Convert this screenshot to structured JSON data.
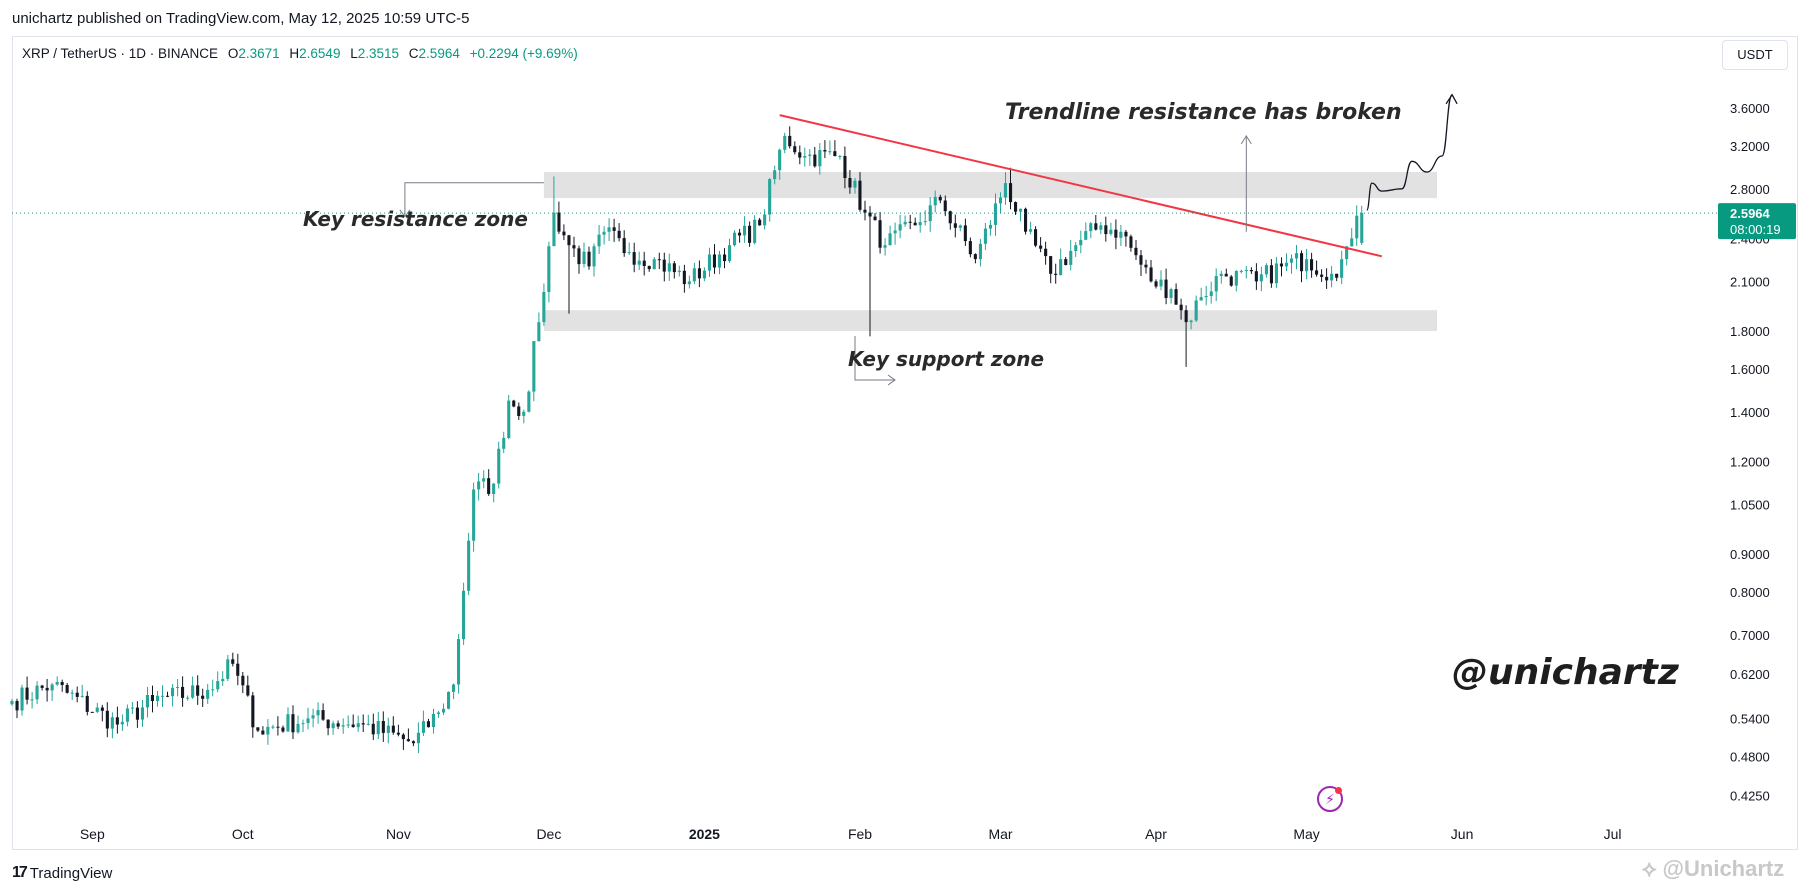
{
  "header": {
    "published": "unichartz published on TradingView.com, May 12, 2025 10:59 UTC-5"
  },
  "legend": {
    "symbol": "XRP / TetherUS · 1D · BINANCE",
    "o_label": "O",
    "o": "2.3671",
    "h_label": "H",
    "h": "2.6549",
    "l_label": "L",
    "l": "2.3515",
    "c_label": "C",
    "c": "2.5964",
    "change": "+0.2294 (+9.69%)"
  },
  "currency_button": "USDT",
  "last_price": {
    "value": "2.5964",
    "countdown": "08:00:19"
  },
  "annotations": {
    "trendline_text": "Trendline resistance has broken",
    "resistance_text": "Key resistance zone",
    "support_text": "Key support zone",
    "watermark_handle": "@unichartz"
  },
  "footer": {
    "brand": "TradingView",
    "brand_glyph": "17",
    "watermark": "@Unichartz"
  },
  "colors": {
    "up": "#26a69a",
    "down": "#131722",
    "trendline": "#f23645",
    "zone": "#e2e2e2",
    "price_tag": "#089981"
  },
  "chart_data": {
    "type": "candlestick",
    "symbol": "XRP / TetherUS",
    "interval": "1D",
    "exchange": "BINANCE",
    "y_scale": "log",
    "y_ticks": [
      3.6,
      3.2,
      2.8,
      2.4,
      2.1,
      1.8,
      1.6,
      1.4,
      1.2,
      1.05,
      0.9,
      0.8,
      0.7,
      0.62,
      0.54,
      0.48,
      0.425
    ],
    "y_tick_labels": [
      "3.6000",
      "3.2000",
      "2.8000",
      "2.4000",
      "2.1000",
      "1.8000",
      "1.6000",
      "1.4000",
      "1.2000",
      "1.0500",
      "0.9000",
      "0.8000",
      "0.7000",
      "0.6200",
      "0.5400",
      "0.4800",
      "0.4250"
    ],
    "x_ticks": [
      {
        "label": "Sep",
        "date": "2024-09-01",
        "bold": false
      },
      {
        "label": "Oct",
        "date": "2024-10-01",
        "bold": false
      },
      {
        "label": "Nov",
        "date": "2024-11-01",
        "bold": false
      },
      {
        "label": "Dec",
        "date": "2024-12-01",
        "bold": false
      },
      {
        "label": "2025",
        "date": "2025-01-01",
        "bold": true
      },
      {
        "label": "Feb",
        "date": "2025-02-01",
        "bold": false
      },
      {
        "label": "Mar",
        "date": "2025-03-01",
        "bold": false
      },
      {
        "label": "Apr",
        "date": "2025-04-01",
        "bold": false
      },
      {
        "label": "May",
        "date": "2025-05-01",
        "bold": false
      },
      {
        "label": "Jun",
        "date": "2025-06-01",
        "bold": false
      },
      {
        "label": "Jul",
        "date": "2025-07-01",
        "bold": false
      }
    ],
    "x_range": [
      "2024-08-16",
      "2025-07-22"
    ],
    "y_range": [
      0.4,
      4.05
    ],
    "anchors": [
      [
        "2024-08-16",
        0.57
      ],
      [
        "2024-08-24",
        0.6
      ],
      [
        "2024-09-06",
        0.53
      ],
      [
        "2024-09-13",
        0.57
      ],
      [
        "2024-09-24",
        0.59
      ],
      [
        "2024-09-29",
        0.64
      ],
      [
        "2024-10-04",
        0.52
      ],
      [
        "2024-10-14",
        0.54
      ],
      [
        "2024-10-25",
        0.53
      ],
      [
        "2024-11-04",
        0.5
      ],
      [
        "2024-11-09",
        0.55
      ],
      [
        "2024-11-12",
        0.6
      ],
      [
        "2024-11-16",
        1.1
      ],
      [
        "2024-11-20",
        1.12
      ],
      [
        "2024-11-23",
        1.45
      ],
      [
        "2024-11-26",
        1.4
      ],
      [
        "2024-11-29",
        1.85
      ],
      [
        "2024-12-02",
        2.6
      ],
      [
        "2024-12-05",
        2.35
      ],
      [
        "2024-12-09",
        2.2
      ],
      [
        "2024-12-12",
        2.45
      ],
      [
        "2024-12-17",
        2.3
      ],
      [
        "2024-12-22",
        2.25
      ],
      [
        "2024-12-29",
        2.1
      ],
      [
        "2025-01-06",
        2.35
      ],
      [
        "2025-01-12",
        2.5
      ],
      [
        "2025-01-17",
        3.3
      ],
      [
        "2025-01-21",
        3.1
      ],
      [
        "2025-01-28",
        3.1
      ],
      [
        "2025-02-02",
        2.6
      ],
      [
        "2025-02-06",
        2.35
      ],
      [
        "2025-02-12",
        2.5
      ],
      [
        "2025-02-17",
        2.7
      ],
      [
        "2025-02-24",
        2.25
      ],
      [
        "2025-03-02",
        2.85
      ],
      [
        "2025-03-06",
        2.45
      ],
      [
        "2025-03-11",
        2.15
      ],
      [
        "2025-03-16",
        2.35
      ],
      [
        "2025-03-21",
        2.5
      ],
      [
        "2025-03-25",
        2.45
      ],
      [
        "2025-03-31",
        2.1
      ],
      [
        "2025-04-04",
        2.05
      ],
      [
        "2025-04-07",
        1.85
      ],
      [
        "2025-04-10",
        2.0
      ],
      [
        "2025-04-14",
        2.15
      ],
      [
        "2025-04-21",
        2.1
      ],
      [
        "2025-04-26",
        2.2
      ],
      [
        "2025-05-01",
        2.25
      ],
      [
        "2025-05-06",
        2.15
      ],
      [
        "2025-05-08",
        2.25
      ],
      [
        "2025-05-10",
        2.4
      ],
      [
        "2025-05-12",
        2.5964
      ]
    ],
    "spikes": [
      {
        "date": "2024-12-02",
        "high": 2.91
      },
      {
        "date": "2024-12-05",
        "low": 1.9
      },
      {
        "date": "2025-01-18",
        "high": 3.4
      },
      {
        "date": "2025-02-03",
        "low": 1.77
      },
      {
        "date": "2025-03-03",
        "high": 2.99
      },
      {
        "date": "2025-04-07",
        "low": 1.61
      }
    ],
    "last_candle": {
      "date": "2025-05-12",
      "open": 2.3671,
      "high": 2.6549,
      "low": 2.3515,
      "close": 2.5964
    },
    "resistance_zone": {
      "from": "2024-11-30",
      "to": "2025-05-27",
      "low": 2.72,
      "high": 2.95
    },
    "support_zone": {
      "from": "2024-11-30",
      "to": "2025-05-27",
      "low": 1.8,
      "high": 1.92
    },
    "trendline": {
      "from": [
        "2025-01-16",
        3.52
      ],
      "to": [
        "2025-05-16",
        2.27
      ]
    },
    "projection": [
      [
        "2025-05-13",
        2.62
      ],
      [
        "2025-05-14",
        2.85
      ],
      [
        "2025-05-16",
        2.78
      ],
      [
        "2025-05-20",
        2.8
      ],
      [
        "2025-05-22",
        3.05
      ],
      [
        "2025-05-25",
        2.95
      ],
      [
        "2025-05-28",
        3.1
      ],
      [
        "2025-05-30",
        3.75
      ]
    ],
    "breakout_arrow": {
      "date": "2025-04-19",
      "from": 2.45,
      "to": 3.3
    }
  }
}
